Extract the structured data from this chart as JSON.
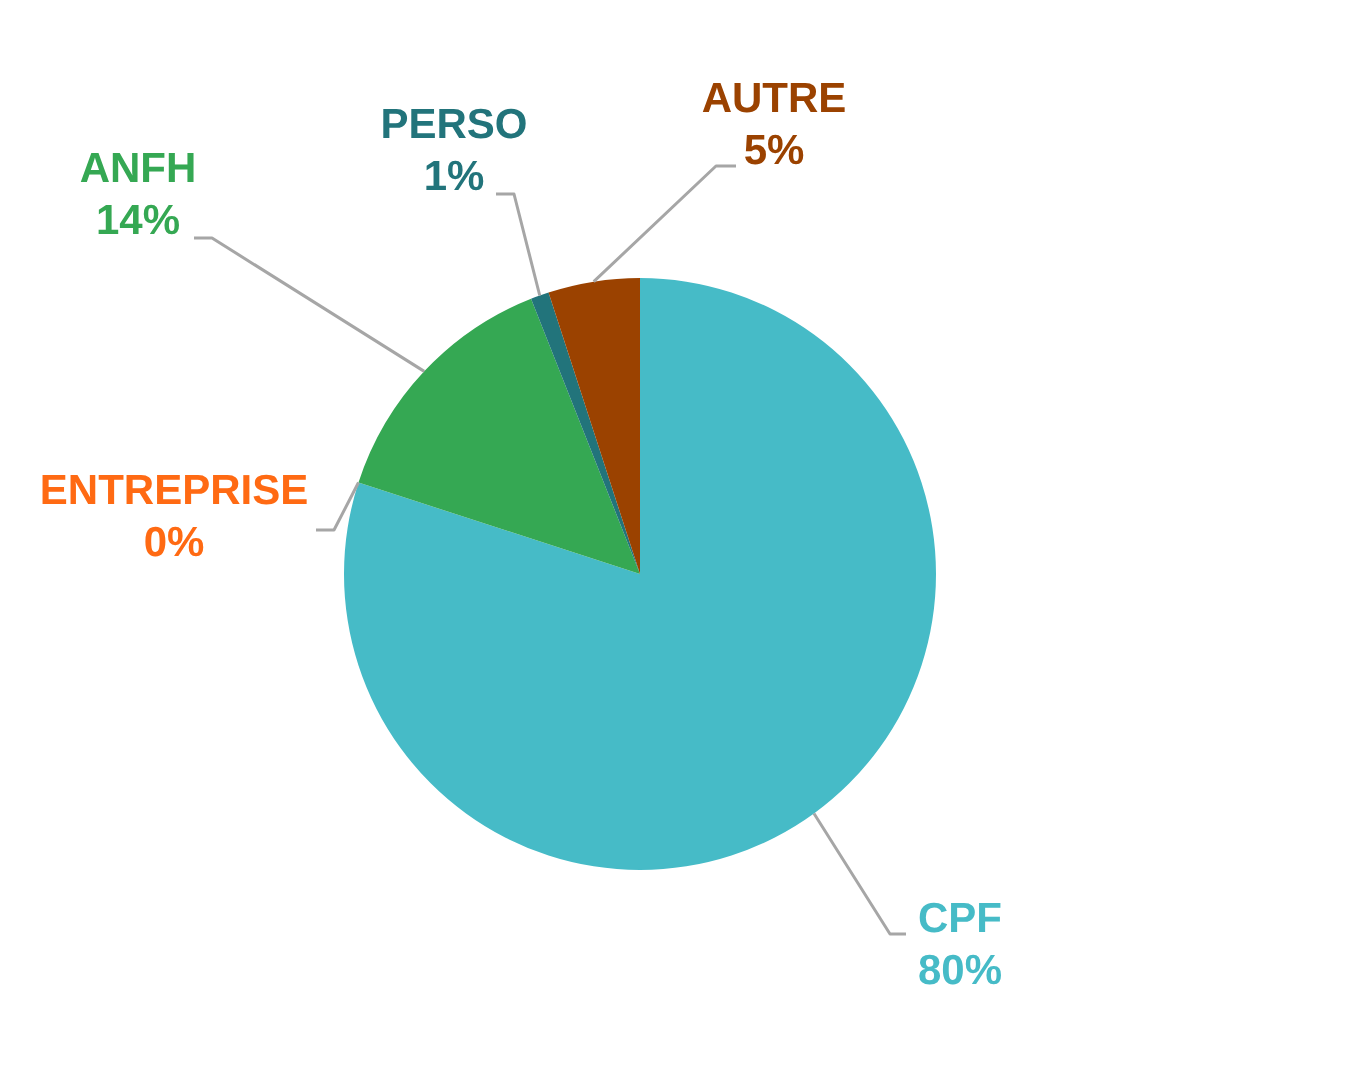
{
  "chart_data": {
    "type": "pie",
    "categories": [
      "CPF",
      "ENTREPRISE",
      "ANFH",
      "PERSO",
      "AUTRE"
    ],
    "values": [
      80,
      0,
      14,
      1,
      5
    ],
    "colors": [
      "#46bbc7",
      "#ff6a13",
      "#35a853",
      "#22747b",
      "#9b4200"
    ],
    "value_labels": [
      "80%",
      "0%",
      "14%",
      "1%",
      "5%"
    ]
  }
}
